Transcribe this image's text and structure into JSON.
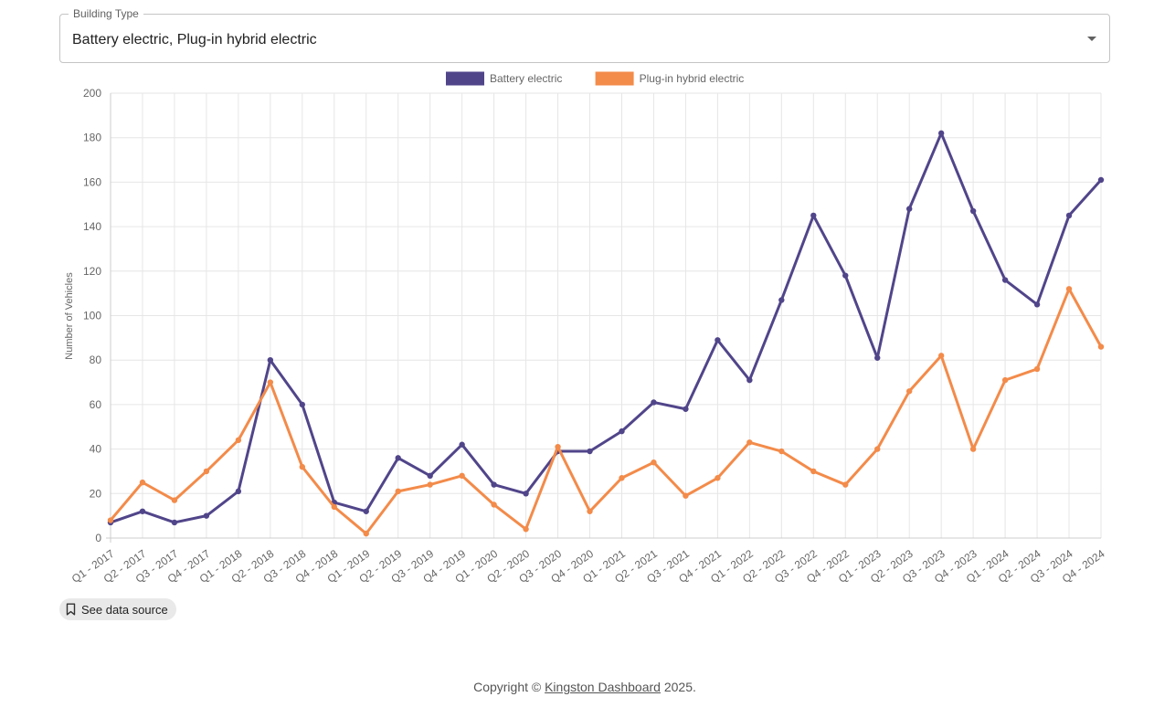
{
  "filter": {
    "legend": "Building Type",
    "value": "Battery electric, Plug-in hybrid electric"
  },
  "chart_data": {
    "type": "line",
    "ylabel": "Number of Vehicles",
    "xlabel": "",
    "ylim": [
      0,
      200
    ],
    "yticks": [
      0,
      20,
      40,
      60,
      80,
      100,
      120,
      140,
      160,
      180,
      200
    ],
    "grid": true,
    "legend_position": "top-center",
    "categories": [
      "Q1 - 2017",
      "Q2 - 2017",
      "Q3 - 2017",
      "Q4 - 2017",
      "Q1 - 2018",
      "Q2 - 2018",
      "Q3 - 2018",
      "Q4 - 2018",
      "Q1 - 2019",
      "Q2 - 2019",
      "Q3 - 2019",
      "Q4 - 2019",
      "Q1 - 2020",
      "Q2 - 2020",
      "Q3 - 2020",
      "Q4 - 2020",
      "Q1 - 2021",
      "Q2 - 2021",
      "Q3 - 2021",
      "Q4 - 2021",
      "Q1 - 2022",
      "Q2 - 2022",
      "Q3 - 2022",
      "Q4 - 2022",
      "Q1 - 2023",
      "Q2 - 2023",
      "Q3 - 2023",
      "Q4 - 2023",
      "Q1 - 2024",
      "Q2 - 2024",
      "Q3 - 2024",
      "Q4 - 2024"
    ],
    "series": [
      {
        "name": "Battery electric",
        "color": "#51458a",
        "values": [
          7,
          12,
          7,
          10,
          21,
          80,
          60,
          16,
          12,
          36,
          28,
          42,
          24,
          20,
          39,
          39,
          48,
          61,
          58,
          89,
          71,
          107,
          145,
          118,
          81,
          148,
          182,
          147,
          116,
          105,
          145,
          161
        ]
      },
      {
        "name": "Plug-in hybrid electric",
        "color": "#f38b4a",
        "values": [
          8,
          25,
          17,
          30,
          44,
          70,
          32,
          14,
          2,
          21,
          24,
          28,
          15,
          4,
          41,
          12,
          27,
          34,
          19,
          27,
          43,
          39,
          30,
          24,
          40,
          66,
          82,
          40,
          71,
          76,
          112,
          86
        ]
      }
    ]
  },
  "source_button": {
    "label": "See data source",
    "icon": "bookmark-icon"
  },
  "footer": {
    "prefix": "Copyright © ",
    "link": "Kingston Dashboard",
    "suffix": " 2025."
  }
}
